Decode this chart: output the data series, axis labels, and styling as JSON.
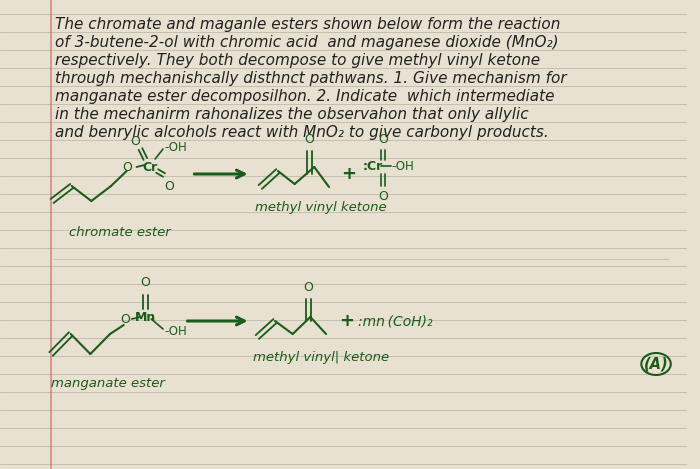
{
  "bg_color": "#e8e0d0",
  "line_color": "#b8b0a0",
  "margin_color": "#cc6666",
  "green": "#1a5c1a",
  "dark_green": "#2a6b2a",
  "text_dark": "#222222",
  "fig_width": 7.0,
  "fig_height": 4.69,
  "dpi": 100,
  "title_lines": [
    "The chromate and maganle esters shown below form the reaction",
    "of 3-butene-2-ol with chromic acid  and maganese dioxide (MnO₂)",
    "respectively. They both decompose to give methyl vinyl ketone",
    "through mechanishcally disthnct pathwans. 1. Give mechanism for",
    "manganate ester decomposilhon. 2. Indicate  which intermediate",
    "in the mechanirm rahonalizes the observahon that only allylic",
    "and benrylic alcohols react with MnO₂ to give carbonyl products."
  ]
}
